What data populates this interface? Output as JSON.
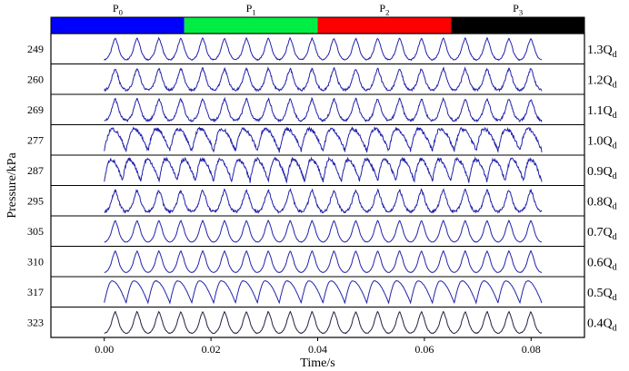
{
  "chart_data": {
    "type": "line",
    "title": "",
    "xlabel": "Time/s",
    "ylabel": "Pressure/kPa",
    "xlim": [
      -0.01,
      0.09
    ],
    "x_ticks": [
      0.0,
      0.02,
      0.04,
      0.06,
      0.08
    ],
    "x_tick_labels": [
      "0.00",
      "0.02",
      "0.04",
      "0.06",
      "0.08"
    ],
    "signal_time_range": [
      0.0,
      0.082
    ],
    "color_bar": [
      {
        "label_main": "P",
        "label_sub": "0",
        "color": "#0000ff",
        "start": -0.01,
        "end": 0.015
      },
      {
        "label_main": "P",
        "label_sub": "1",
        "color": "#00ee44",
        "start": 0.015,
        "end": 0.04
      },
      {
        "label_main": "P",
        "label_sub": "2",
        "color": "#ff0000",
        "start": 0.04,
        "end": 0.065
      },
      {
        "label_main": "P",
        "label_sub": "3",
        "color": "#000000",
        "start": 0.065,
        "end": 0.09
      }
    ],
    "series": [
      {
        "pressure_label": "249",
        "flow_main": "1.3Q",
        "flow_sub": "d",
        "cycles": 20,
        "noise": 0.05,
        "style": "arch",
        "color": "#2222aa"
      },
      {
        "pressure_label": "260",
        "flow_main": "1.2Q",
        "flow_sub": "d",
        "cycles": 20,
        "noise": 0.1,
        "style": "arch",
        "color": "#2222aa"
      },
      {
        "pressure_label": "269",
        "flow_main": "1.1Q",
        "flow_sub": "d",
        "cycles": 20,
        "noise": 0.1,
        "style": "arch",
        "color": "#2222aa"
      },
      {
        "pressure_label": "277",
        "flow_main": "1.0Q",
        "flow_sub": "d",
        "cycles": 20,
        "noise": 0.16,
        "style": "saw",
        "color": "#2222aa"
      },
      {
        "pressure_label": "287",
        "flow_main": "0.9Q",
        "flow_sub": "d",
        "cycles": 24,
        "noise": 0.16,
        "style": "saw",
        "color": "#2222aa"
      },
      {
        "pressure_label": "295",
        "flow_main": "0.8Q",
        "flow_sub": "d",
        "cycles": 20,
        "noise": 0.12,
        "style": "arch",
        "color": "#2222aa"
      },
      {
        "pressure_label": "305",
        "flow_main": "0.7Q",
        "flow_sub": "d",
        "cycles": 20,
        "noise": 0.02,
        "style": "arch",
        "color": "#2222aa"
      },
      {
        "pressure_label": "310",
        "flow_main": "0.6Q",
        "flow_sub": "d",
        "cycles": 20,
        "noise": 0.02,
        "style": "arch",
        "color": "#2222aa"
      },
      {
        "pressure_label": "317",
        "flow_main": "0.5Q",
        "flow_sub": "d",
        "cycles": 20,
        "noise": 0.02,
        "style": "saw",
        "color": "#2222aa"
      },
      {
        "pressure_label": "323",
        "flow_main": "0.4Q",
        "flow_sub": "d",
        "cycles": 20,
        "noise": 0.03,
        "style": "arch",
        "color": "#222244"
      }
    ]
  }
}
